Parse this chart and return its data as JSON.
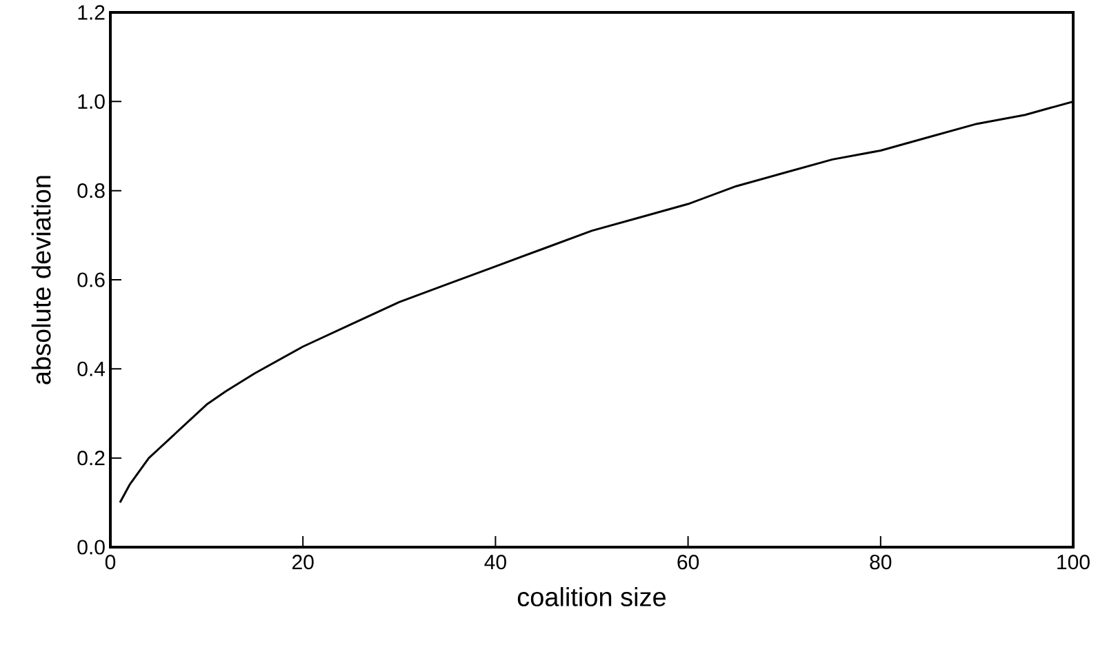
{
  "chart_data": {
    "type": "line",
    "xlabel": "coalition size",
    "ylabel": "absolute deviation",
    "x": [
      1,
      2,
      3,
      4,
      5,
      6,
      8,
      10,
      12,
      15,
      20,
      25,
      30,
      35,
      40,
      45,
      50,
      55,
      60,
      65,
      70,
      75,
      80,
      85,
      90,
      95,
      100
    ],
    "series": [
      {
        "color": "#000000",
        "values": [
          0.1,
          0.14,
          0.17,
          0.2,
          0.22,
          0.24,
          0.28,
          0.32,
          0.35,
          0.39,
          0.45,
          0.5,
          0.55,
          0.59,
          0.63,
          0.67,
          0.71,
          0.74,
          0.77,
          0.81,
          0.84,
          0.87,
          0.89,
          0.92,
          0.95,
          0.97,
          1.0
        ]
      }
    ],
    "xlim": [
      0,
      100
    ],
    "ylim": [
      0,
      1.2
    ],
    "xticks": [
      0,
      20,
      40,
      60,
      80,
      100
    ],
    "yticks": [
      {
        "value": 0,
        "label": "0.0"
      },
      {
        "value": 0.2,
        "label": "0.2"
      },
      {
        "value": 0.4,
        "label": "0.4"
      },
      {
        "value": 0.6,
        "label": "0.6"
      },
      {
        "value": 0.8,
        "label": "0.8"
      },
      {
        "value": 1.0,
        "label": "1.0"
      },
      {
        "value": 1.2,
        "label": "1.2"
      }
    ],
    "grid": false,
    "marker": "none",
    "line_style": "solid"
  }
}
